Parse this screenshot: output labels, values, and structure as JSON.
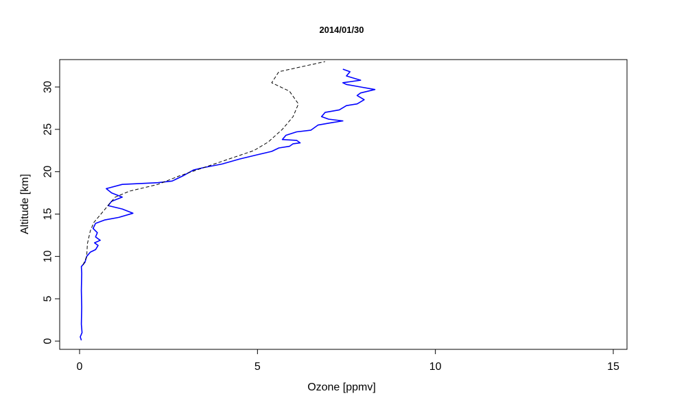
{
  "chart_data": {
    "type": "line",
    "title": "2014/01/30",
    "xlabel": "Ozone [ppmv]",
    "ylabel": "Altitude [km]",
    "xlim": [
      0,
      15
    ],
    "ylim": [
      0,
      33
    ],
    "xticks": [
      0,
      5,
      10,
      15
    ],
    "yticks": [
      0,
      5,
      10,
      15,
      20,
      25,
      30
    ],
    "grid": false,
    "series": [
      {
        "style": "solid",
        "color": "#0000ff",
        "points": [
          [
            0.05,
            0.1
          ],
          [
            0.02,
            0.5
          ],
          [
            0.07,
            1.0
          ],
          [
            0.05,
            2.0
          ],
          [
            0.06,
            4.0
          ],
          [
            0.05,
            6.0
          ],
          [
            0.06,
            8.0
          ],
          [
            0.05,
            8.8
          ],
          [
            0.15,
            9.3
          ],
          [
            0.2,
            10.0
          ],
          [
            0.3,
            10.5
          ],
          [
            0.45,
            10.8
          ],
          [
            0.52,
            11.3
          ],
          [
            0.42,
            11.6
          ],
          [
            0.58,
            11.9
          ],
          [
            0.45,
            12.3
          ],
          [
            0.5,
            12.8
          ],
          [
            0.38,
            13.3
          ],
          [
            0.45,
            13.9
          ],
          [
            0.7,
            14.3
          ],
          [
            1.1,
            14.6
          ],
          [
            1.5,
            15.1
          ],
          [
            1.2,
            15.6
          ],
          [
            0.8,
            16.0
          ],
          [
            0.9,
            16.5
          ],
          [
            1.2,
            17.0
          ],
          [
            0.9,
            17.5
          ],
          [
            0.75,
            18.0
          ],
          [
            1.2,
            18.5
          ],
          [
            2.2,
            18.7
          ],
          [
            2.6,
            18.9
          ],
          [
            2.9,
            19.5
          ],
          [
            3.2,
            20.2
          ],
          [
            3.5,
            20.5
          ],
          [
            4.0,
            20.9
          ],
          [
            4.5,
            21.5
          ],
          [
            5.0,
            22.0
          ],
          [
            5.4,
            22.4
          ],
          [
            5.6,
            22.8
          ],
          [
            5.9,
            23.0
          ],
          [
            6.0,
            23.3
          ],
          [
            6.2,
            23.4
          ],
          [
            6.1,
            23.7
          ],
          [
            5.7,
            23.8
          ],
          [
            5.8,
            24.3
          ],
          [
            6.1,
            24.7
          ],
          [
            6.5,
            24.9
          ],
          [
            6.7,
            25.5
          ],
          [
            7.1,
            25.8
          ],
          [
            7.4,
            26.0
          ],
          [
            7.0,
            26.2
          ],
          [
            6.8,
            26.5
          ],
          [
            6.9,
            27.0
          ],
          [
            7.3,
            27.3
          ],
          [
            7.5,
            27.8
          ],
          [
            7.8,
            28.0
          ],
          [
            8.0,
            28.5
          ],
          [
            7.8,
            29.0
          ],
          [
            7.9,
            29.3
          ],
          [
            8.3,
            29.7
          ],
          [
            7.9,
            30.0
          ],
          [
            7.5,
            30.3
          ],
          [
            7.4,
            30.5
          ],
          [
            7.9,
            30.8
          ],
          [
            7.5,
            31.3
          ],
          [
            7.6,
            31.8
          ],
          [
            7.4,
            32.1
          ]
        ]
      },
      {
        "style": "dashed",
        "color": "#000000",
        "points": [
          [
            0.1,
            9.0
          ],
          [
            0.2,
            10.0
          ],
          [
            0.22,
            11.5
          ],
          [
            0.3,
            13.0
          ],
          [
            0.4,
            14.0
          ],
          [
            0.6,
            15.0
          ],
          [
            0.8,
            16.0
          ],
          [
            1.0,
            17.0
          ],
          [
            1.4,
            17.7
          ],
          [
            2.2,
            18.5
          ],
          [
            2.8,
            19.5
          ],
          [
            3.5,
            20.5
          ],
          [
            4.2,
            21.5
          ],
          [
            4.9,
            22.5
          ],
          [
            5.3,
            23.5
          ],
          [
            5.7,
            25.0
          ],
          [
            6.0,
            26.5
          ],
          [
            6.15,
            28.0
          ],
          [
            5.9,
            29.5
          ],
          [
            5.4,
            30.5
          ],
          [
            5.6,
            31.8
          ],
          [
            6.9,
            33.0
          ]
        ]
      }
    ]
  }
}
